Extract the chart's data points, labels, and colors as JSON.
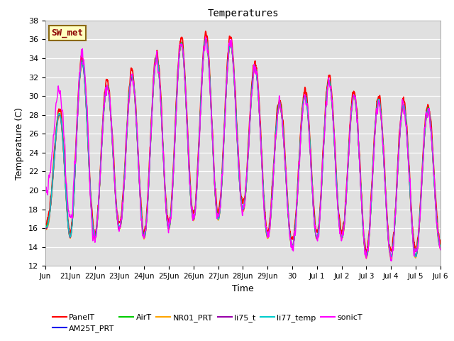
{
  "title": "Temperatures",
  "xlabel": "Time",
  "ylabel": "Temperature (C)",
  "ylim": [
    12,
    38
  ],
  "yticks": [
    12,
    14,
    16,
    18,
    20,
    22,
    24,
    26,
    28,
    30,
    32,
    34,
    36,
    38
  ],
  "annotation_text": "SW_met",
  "annotation_color": "#8B0000",
  "annotation_bg": "#FFFFC0",
  "annotation_border": "#8B6914",
  "bg_color": "#E0E0E0",
  "series_order": [
    "PanelT",
    "AM25T_PRT",
    "AirT",
    "NR01_PRT",
    "li75_t",
    "li77_temp",
    "sonicT"
  ],
  "series": {
    "PanelT": {
      "color": "#FF0000",
      "lw": 1.2
    },
    "AM25T_PRT": {
      "color": "#0000EE",
      "lw": 1.0
    },
    "AirT": {
      "color": "#00CC00",
      "lw": 1.0
    },
    "NR01_PRT": {
      "color": "#FFA500",
      "lw": 1.0
    },
    "li75_t": {
      "color": "#9900AA",
      "lw": 1.0
    },
    "li77_temp": {
      "color": "#00CCCC",
      "lw": 1.0
    },
    "sonicT": {
      "color": "#FF00FF",
      "lw": 1.0
    }
  },
  "tick_labels": [
    "Jun",
    "21Jun",
    "22Jun",
    "23Jun",
    "24Jun",
    "25Jun",
    "26Jun",
    "27Jun",
    "28Jun",
    "29Jun",
    "30",
    "Jul 1",
    "Jul 2",
    "Jul 3",
    "Jul 4",
    "Jul 5",
    "Jul 6"
  ],
  "day_max": [
    19,
    36,
    31,
    31,
    33,
    35,
    36,
    36,
    35,
    31,
    27,
    33,
    30,
    30,
    29,
    29,
    28
  ],
  "day_min": [
    16,
    15,
    15,
    16,
    15,
    16,
    17,
    17,
    18,
    15,
    14,
    15,
    15,
    13,
    13,
    13,
    14
  ]
}
